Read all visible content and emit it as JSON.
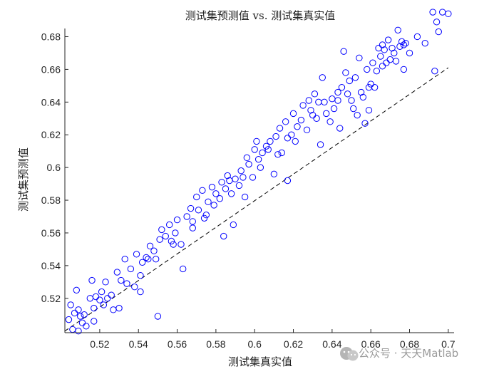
{
  "chart_data": {
    "type": "scatter",
    "title": "测试集预测值 vs. 测试集真实值",
    "xlabel": "测试集真实值",
    "ylabel": "测试集预测值",
    "xlim": [
      0.502,
      0.703
    ],
    "ylim": [
      0.499,
      0.685
    ],
    "xticks": [
      0.52,
      0.54,
      0.56,
      0.58,
      0.6,
      0.62,
      0.64,
      0.66,
      0.68,
      0.7
    ],
    "xtick_labels": [
      "0.52",
      "0.54",
      "0.56",
      "0.58",
      "0.6",
      "0.62",
      "0.64",
      "0.66",
      "0.68",
      "0.7"
    ],
    "yticks": [
      0.52,
      0.54,
      0.56,
      0.58,
      0.6,
      0.62,
      0.64,
      0.66,
      0.68
    ],
    "ytick_labels": [
      "0.52",
      "0.54",
      "0.56",
      "0.58",
      "0.6",
      "0.62",
      "0.64",
      "0.66",
      "0.68"
    ],
    "grid": false,
    "marker_color": "#0000ff",
    "reference_line": {
      "x": [
        0.502,
        0.7
      ],
      "y": [
        0.5,
        0.661
      ],
      "color": "#000000",
      "style": "dashed"
    },
    "points": [
      [
        0.504,
        0.507
      ],
      [
        0.505,
        0.516
      ],
      [
        0.507,
        0.511
      ],
      [
        0.508,
        0.525
      ],
      [
        0.509,
        0.513
      ],
      [
        0.51,
        0.509
      ],
      [
        0.511,
        0.505
      ],
      [
        0.512,
        0.51
      ],
      [
        0.513,
        0.503
      ],
      [
        0.515,
        0.52
      ],
      [
        0.516,
        0.531
      ],
      [
        0.517,
        0.514
      ],
      [
        0.518,
        0.521
      ],
      [
        0.52,
        0.519
      ],
      [
        0.521,
        0.524
      ],
      [
        0.522,
        0.516
      ],
      [
        0.523,
        0.53
      ],
      [
        0.524,
        0.52
      ],
      [
        0.526,
        0.522
      ],
      [
        0.527,
        0.513
      ],
      [
        0.529,
        0.536
      ],
      [
        0.531,
        0.531
      ],
      [
        0.533,
        0.544
      ],
      [
        0.534,
        0.529
      ],
      [
        0.536,
        0.538
      ],
      [
        0.538,
        0.527
      ],
      [
        0.539,
        0.547
      ],
      [
        0.541,
        0.534
      ],
      [
        0.542,
        0.542
      ],
      [
        0.544,
        0.545
      ],
      [
        0.546,
        0.552
      ],
      [
        0.548,
        0.549
      ],
      [
        0.549,
        0.544
      ],
      [
        0.551,
        0.556
      ],
      [
        0.552,
        0.562
      ],
      [
        0.554,
        0.558
      ],
      [
        0.556,
        0.565
      ],
      [
        0.557,
        0.555
      ],
      [
        0.559,
        0.56
      ],
      [
        0.56,
        0.568
      ],
      [
        0.562,
        0.553
      ],
      [
        0.563,
        0.538
      ],
      [
        0.565,
        0.57
      ],
      [
        0.567,
        0.575
      ],
      [
        0.568,
        0.563
      ],
      [
        0.57,
        0.582
      ],
      [
        0.571,
        0.574
      ],
      [
        0.573,
        0.586
      ],
      [
        0.574,
        0.569
      ],
      [
        0.576,
        0.579
      ],
      [
        0.578,
        0.588
      ],
      [
        0.579,
        0.577
      ],
      [
        0.58,
        0.584
      ],
      [
        0.582,
        0.581
      ],
      [
        0.583,
        0.591
      ],
      [
        0.585,
        0.587
      ],
      [
        0.586,
        0.595
      ],
      [
        0.588,
        0.584
      ],
      [
        0.589,
        0.565
      ],
      [
        0.59,
        0.593
      ],
      [
        0.592,
        0.589
      ],
      [
        0.593,
        0.598
      ],
      [
        0.594,
        0.594
      ],
      [
        0.596,
        0.606
      ],
      [
        0.597,
        0.602
      ],
      [
        0.599,
        0.594
      ],
      [
        0.6,
        0.611
      ],
      [
        0.601,
        0.616
      ],
      [
        0.603,
        0.6
      ],
      [
        0.604,
        0.609
      ],
      [
        0.606,
        0.613
      ],
      [
        0.607,
        0.611
      ],
      [
        0.608,
        0.616
      ],
      [
        0.61,
        0.596
      ],
      [
        0.611,
        0.619
      ],
      [
        0.613,
        0.624
      ],
      [
        0.614,
        0.609
      ],
      [
        0.616,
        0.628
      ],
      [
        0.617,
        0.592
      ],
      [
        0.619,
        0.62
      ],
      [
        0.62,
        0.633
      ],
      [
        0.621,
        0.616
      ],
      [
        0.622,
        0.625
      ],
      [
        0.624,
        0.629
      ],
      [
        0.625,
        0.638
      ],
      [
        0.627,
        0.623
      ],
      [
        0.628,
        0.641
      ],
      [
        0.629,
        0.635
      ],
      [
        0.631,
        0.645
      ],
      [
        0.632,
        0.63
      ],
      [
        0.633,
        0.64
      ],
      [
        0.634,
        0.614
      ],
      [
        0.635,
        0.655
      ],
      [
        0.636,
        0.64
      ],
      [
        0.637,
        0.633
      ],
      [
        0.639,
        0.628
      ],
      [
        0.64,
        0.642
      ],
      [
        0.641,
        0.636
      ],
      [
        0.643,
        0.646
      ],
      [
        0.644,
        0.624
      ],
      [
        0.645,
        0.649
      ],
      [
        0.646,
        0.671
      ],
      [
        0.647,
        0.658
      ],
      [
        0.648,
        0.645
      ],
      [
        0.649,
        0.653
      ],
      [
        0.65,
        0.641
      ],
      [
        0.651,
        0.636
      ],
      [
        0.652,
        0.655
      ],
      [
        0.653,
        0.632
      ],
      [
        0.654,
        0.667
      ],
      [
        0.655,
        0.646
      ],
      [
        0.656,
        0.643
      ],
      [
        0.657,
        0.627
      ],
      [
        0.658,
        0.66
      ],
      [
        0.659,
        0.635
      ],
      [
        0.66,
        0.651
      ],
      [
        0.661,
        0.664
      ],
      [
        0.662,
        0.649
      ],
      [
        0.663,
        0.659
      ],
      [
        0.664,
        0.673
      ],
      [
        0.665,
        0.668
      ],
      [
        0.666,
        0.675
      ],
      [
        0.667,
        0.672
      ],
      [
        0.668,
        0.664
      ],
      [
        0.669,
        0.678
      ],
      [
        0.67,
        0.666
      ],
      [
        0.671,
        0.673
      ],
      [
        0.672,
        0.67
      ],
      [
        0.673,
        0.665
      ],
      [
        0.674,
        0.684
      ],
      [
        0.675,
        0.674
      ],
      [
        0.676,
        0.677
      ],
      [
        0.677,
        0.66
      ],
      [
        0.678,
        0.676
      ],
      [
        0.68,
        0.67
      ],
      [
        0.684,
        0.68
      ],
      [
        0.688,
        0.676
      ],
      [
        0.692,
        0.695
      ],
      [
        0.693,
        0.659
      ],
      [
        0.694,
        0.689
      ],
      [
        0.695,
        0.683
      ],
      [
        0.697,
        0.695
      ],
      [
        0.7,
        0.694
      ],
      [
        0.55,
        0.509
      ],
      [
        0.541,
        0.524
      ],
      [
        0.575,
        0.571
      ],
      [
        0.595,
        0.582
      ],
      [
        0.584,
        0.558
      ],
      [
        0.612,
        0.608
      ],
      [
        0.558,
        0.553
      ],
      [
        0.517,
        0.506
      ],
      [
        0.506,
        0.501
      ],
      [
        0.509,
        0.5
      ],
      [
        0.53,
        0.514
      ],
      [
        0.545,
        0.544
      ],
      [
        0.568,
        0.567
      ],
      [
        0.587,
        0.592
      ],
      [
        0.602,
        0.605
      ],
      [
        0.617,
        0.618
      ],
      [
        0.63,
        0.632
      ],
      [
        0.643,
        0.641
      ],
      [
        0.659,
        0.649
      ],
      [
        0.666,
        0.662
      ],
      [
        0.677,
        0.675
      ]
    ]
  },
  "watermark": {
    "icon": "wechat-icon",
    "text": "公众号 · 天天Matlab"
  }
}
